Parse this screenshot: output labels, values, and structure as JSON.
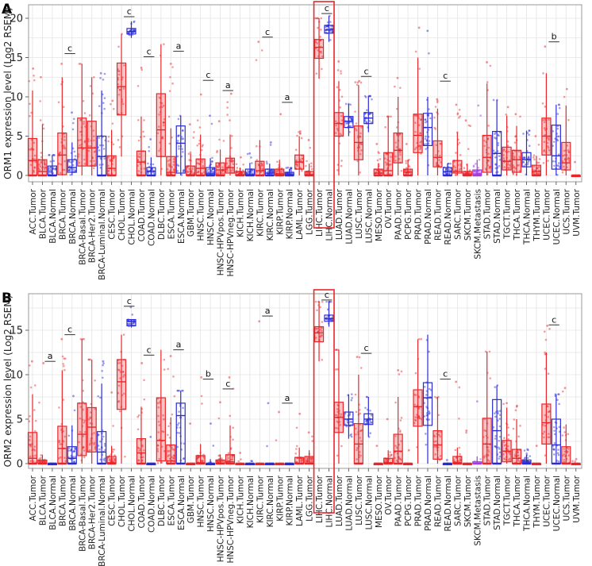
{
  "colors": {
    "tumor": "#e8262b",
    "normal": "#2b2bd6",
    "metastasis": "#a23ee0",
    "highlight": "#e8262b",
    "grid": "#e4e4e4"
  },
  "chart_data": [
    {
      "type": "box",
      "panel": "A",
      "ylabel": "ORM1 expression level (Log2 RSEM)",
      "ylim": [
        0,
        20.8
      ],
      "yticks": [
        0,
        5,
        10,
        15,
        20
      ],
      "grid": true,
      "highlight": [
        "LIHC.Tumor",
        "LIHC.Normal"
      ],
      "stat_format": "[whisker_low, q1, median, q3, whisker_high, max_point]",
      "categories": [
        "ACC.Tumor",
        "BLCA.Tumor",
        "BLCA.Normal",
        "BRCA.Tumor",
        "BRCA.Normal",
        "BRCA-Basal.Tumor",
        "BRCA-Her2.Tumor",
        "BRCA-Luminal.Normal",
        "CESC.Tumor",
        "CHOL.Tumor",
        "CHOL.Normal",
        "COAD.Tumor",
        "COAD.Normal",
        "DLBC.Tumor",
        "ESCA.Tumor",
        "ESCA.Normal",
        "GBM.Tumor",
        "HNSC.Tumor",
        "HNSC.Normal",
        "HNSC-HPVpos.Tumor",
        "HNSC-HPVneg.Tumor",
        "KICH.Tumor",
        "KICH.Normal",
        "KIRC.Tumor",
        "KIRC.Normal",
        "KIRP.Tumor",
        "KIRP.Normal",
        "LAML.Tumor",
        "LGG.Tumor",
        "LIHC.Tumor",
        "LIHC.Normal",
        "LUAD.Tumor",
        "LUAD.Normal",
        "LUSC.Tumor",
        "LUSC.Normal",
        "MESO.Tumor",
        "OV.Tumor",
        "PAAD.Tumor",
        "PCPG.Tumor",
        "PRAD.Tumor",
        "PRAD.Normal",
        "READ.Tumor",
        "READ.Normal",
        "SARC.Tumor",
        "SKCM.Tumor",
        "SKCM.Metastasis",
        "STAD.Tumor",
        "STAD.Normal",
        "TGCT.Tumor",
        "THCA.Tumor",
        "THCA.Normal",
        "THYM.Tumor",
        "UCEC.Tumor",
        "UCEC.Normal",
        "UCS.Tumor",
        "UVM.Tumor"
      ],
      "stats": [
        [
          0,
          0,
          1.9,
          4.7,
          10.8,
          13.6
        ],
        [
          0,
          0,
          0.5,
          2.0,
          6.5,
          12.5
        ],
        [
          0,
          0,
          0,
          1.2,
          2.6,
          2.6
        ],
        [
          0,
          0.1,
          2.6,
          5.4,
          12.5,
          14.2
        ],
        [
          0,
          0.4,
          1.0,
          2.0,
          4.2,
          8
        ],
        [
          0,
          1.2,
          3.5,
          7.3,
          14.2,
          14.2
        ],
        [
          0,
          1.2,
          3.5,
          6.9,
          12.5,
          12.5
        ],
        [
          0,
          0,
          2.4,
          5.0,
          10.8,
          13
        ],
        [
          0,
          0,
          0.9,
          2.5,
          5.8,
          9.5
        ],
        [
          2.4,
          7.7,
          11.3,
          14.3,
          18,
          18
        ],
        [
          17.5,
          18,
          18.3,
          18.7,
          19.6,
          19.6
        ],
        [
          0,
          0,
          1.7,
          3.1,
          7.5,
          13.7
        ],
        [
          0,
          0,
          0.5,
          1.0,
          2.3,
          4.6
        ],
        [
          0,
          2.4,
          5.8,
          10.4,
          16.7,
          16.7
        ],
        [
          0,
          0,
          0.4,
          2.4,
          6,
          14.2
        ],
        [
          0,
          0.3,
          4.1,
          6.3,
          7.6,
          7.6
        ],
        [
          0,
          0,
          0.1,
          1.2,
          2.8,
          6.5
        ],
        [
          0,
          0,
          0.9,
          2.1,
          5.2,
          10.3
        ],
        [
          0,
          0,
          0.2,
          1.0,
          2.2,
          7.6
        ],
        [
          0,
          0,
          0.7,
          1.6,
          3.3,
          6.9
        ],
        [
          0,
          0.3,
          1.0,
          2.2,
          5.2,
          10.4
        ],
        [
          0,
          0,
          0.1,
          0.5,
          1.0,
          2.3
        ],
        [
          0,
          0,
          0.1,
          0.8,
          1.6,
          2.8
        ],
        [
          0,
          0,
          0.6,
          1.8,
          4.5,
          17
        ],
        [
          0,
          0,
          0.3,
          0.8,
          1.5,
          4.2
        ],
        [
          0,
          0,
          0.2,
          0.8,
          2.0,
          7.8
        ],
        [
          0,
          0,
          0.1,
          0.4,
          0.8,
          1.0
        ],
        [
          0,
          0.8,
          1.7,
          2.6,
          5.0,
          5.6
        ],
        [
          0,
          0,
          0.1,
          0.5,
          1.5,
          4.5
        ],
        [
          12.3,
          14.9,
          16.3,
          17.3,
          20,
          20
        ],
        [
          17,
          18.1,
          18.5,
          19.1,
          20.3,
          20.3
        ],
        [
          0,
          5,
          6.6,
          8,
          12,
          14.5
        ],
        [
          5,
          6.1,
          6.9,
          7.5,
          9.1,
          9.1
        ],
        [
          0,
          2,
          4.2,
          6.3,
          11.5,
          12
        ],
        [
          5.5,
          6.6,
          7.3,
          8.0,
          10.1,
          10.1
        ],
        [
          0,
          0,
          0.3,
          0.8,
          1.5,
          4
        ],
        [
          0,
          0,
          0.6,
          2.9,
          7.5,
          7.5
        ],
        [
          0,
          1.6,
          3.2,
          5.4,
          10,
          12.4
        ],
        [
          0,
          0,
          0.4,
          0.8,
          2.0,
          4
        ],
        [
          0,
          2.9,
          5.1,
          7.8,
          15,
          18.8
        ],
        [
          0,
          3.8,
          6.1,
          7.9,
          10,
          18.4
        ],
        [
          0,
          1.1,
          2.3,
          4.4,
          8.5,
          9.7
        ],
        [
          0,
          0,
          0.5,
          1.0,
          1.5,
          1.5
        ],
        [
          0,
          0.3,
          0.5,
          1.9,
          5.5,
          9
        ],
        [
          0,
          0,
          0.2,
          0.5,
          1.5,
          7
        ],
        [
          0,
          0,
          0.2,
          0.7,
          2.0,
          8.9
        ],
        [
          0,
          0.4,
          2.3,
          5.1,
          11.7,
          14.4
        ],
        [
          0,
          0,
          2.8,
          5.6,
          9.6,
          9.6
        ],
        [
          0,
          0.7,
          1.8,
          3.6,
          7.6,
          8.7
        ],
        [
          0,
          0.4,
          2.0,
          3.2,
          6.3,
          7.8
        ],
        [
          0,
          1.1,
          2.0,
          2.9,
          5.7,
          5.7
        ],
        [
          0,
          0,
          0.5,
          1.3,
          2.5,
          5
        ],
        [
          0,
          2.6,
          5.0,
          7.3,
          13,
          16.4
        ],
        [
          0,
          0.8,
          2.5,
          6.4,
          9.0,
          9.0
        ],
        [
          0,
          0.7,
          1.6,
          4.2,
          8.9,
          11
        ],
        [
          0,
          0,
          0,
          0,
          0,
          1.7
        ]
      ],
      "significance": [
        {
          "pair": [
            3,
            4
          ],
          "label": "c",
          "y": 15.5
        },
        {
          "pair": [
            9,
            10
          ],
          "label": "c",
          "y": 20.2
        },
        {
          "pair": [
            11,
            12
          ],
          "label": "c",
          "y": 15.1
        },
        {
          "pair": [
            14,
            15
          ],
          "label": "a",
          "y": 15.8
        },
        {
          "pair": [
            17,
            18
          ],
          "label": "c",
          "y": 12.1
        },
        {
          "pair": [
            19,
            20
          ],
          "label": "a",
          "y": 10.8
        },
        {
          "pair": [
            23,
            24
          ],
          "label": "c",
          "y": 17.6
        },
        {
          "pair": [
            25,
            26
          ],
          "label": "a",
          "y": 9.3
        },
        {
          "pair": [
            29,
            30
          ],
          "label": "c",
          "y": 20.6
        },
        {
          "pair": [
            33,
            34
          ],
          "label": "c",
          "y": 12.6
        },
        {
          "pair": [
            41,
            42
          ],
          "label": "c",
          "y": 12.0
        },
        {
          "pair": [
            52,
            53
          ],
          "label": "b",
          "y": 17.0
        }
      ]
    },
    {
      "type": "box",
      "panel": "B",
      "ylabel": "ORM2 expression level (Log2 RSEM)",
      "ylim": [
        0,
        19.3
      ],
      "yticks": [
        0,
        5,
        10,
        15
      ],
      "grid": true,
      "highlight": [
        "LIHC.Tumor",
        "LIHC.Normal"
      ],
      "stat_format": "[whisker_low, q1, median, q3, whisker_high, max_point]",
      "categories": [
        "ACC.Tumor",
        "BLCA.Tumor",
        "BLCA.Normal",
        "BRCA.Tumor",
        "BRCA.Normal",
        "BRCA-Basal.Tumor",
        "BRCA-Her2.Tumor",
        "BRCA-Luminal.Normal",
        "CESC.Tumor",
        "CHOL.Tumor",
        "CHOL.Normal",
        "COAD.Tumor",
        "COAD.Normal",
        "DLBC.Tumor",
        "ESCA.Tumor",
        "ESCA.Normal",
        "GBM.Tumor",
        "HNSC.Tumor",
        "HNSC.Normal",
        "HNSC-HPVpos.Tumor",
        "HNSC-HPVneg.Tumor",
        "KICH.Tumor",
        "KICH.Normal",
        "KIRC.Tumor",
        "KIRC.Normal",
        "KIRP.Tumor",
        "KIRP.Normal",
        "LAML.Tumor",
        "LGG.Tumor",
        "LIHC.Tumor",
        "LIHC.Normal",
        "LUAD.Tumor",
        "LUAD.Normal",
        "LUSC.Tumor",
        "LUSC.Normal",
        "MESO.Tumor",
        "OV.Tumor",
        "PAAD.Tumor",
        "PCPG.Tumor",
        "PRAD.Tumor",
        "PRAD.Normal",
        "READ.Tumor",
        "READ.Normal",
        "SARC.Tumor",
        "SKCM.Tumor",
        "SKCM.Metastasis",
        "STAD.Tumor",
        "STAD.Normal",
        "TGCT.Tumor",
        "THCA.Tumor",
        "THCA.Normal",
        "THYM.Tumor",
        "UCEC.Tumor",
        "UCEC.Normal",
        "UCS.Tumor",
        "UVM.Tumor"
      ],
      "stats": [
        [
          0,
          0,
          0.6,
          3.5,
          7.8,
          11.5
        ],
        [
          0,
          0,
          0,
          0.4,
          1,
          11.3
        ],
        [
          0,
          0,
          0,
          0,
          0,
          0
        ],
        [
          0,
          0,
          1.7,
          4.2,
          10.5,
          14
        ],
        [
          0,
          0,
          0.6,
          1.9,
          4.3,
          7.6
        ],
        [
          0,
          0.9,
          3.3,
          6.8,
          14,
          14
        ],
        [
          0,
          1.3,
          4.1,
          6.3,
          11.7,
          11.7
        ],
        [
          0,
          0,
          1.3,
          3.6,
          9,
          11.5
        ],
        [
          0,
          0,
          0.1,
          0.8,
          2,
          8
        ],
        [
          0,
          6.1,
          9.2,
          11.7,
          14.5,
          14.5
        ],
        [
          15.3,
          15.5,
          16,
          16.2,
          16.2,
          17.6
        ],
        [
          0,
          0,
          1.2,
          2.8,
          6.4,
          11.3
        ],
        [
          0,
          0,
          0,
          0,
          0,
          3
        ],
        [
          0,
          0.3,
          2.6,
          7.4,
          12.8,
          12.8
        ],
        [
          0,
          0,
          0.3,
          2.1,
          5.2,
          12.1
        ],
        [
          0,
          0,
          5.4,
          6.8,
          8.2,
          8.2
        ],
        [
          0,
          0,
          0,
          0,
          0,
          4.5
        ],
        [
          0,
          0,
          0.1,
          0.9,
          2.2,
          9.7
        ],
        [
          0,
          0,
          0,
          0,
          0.5,
          4.5
        ],
        [
          0,
          0,
          0,
          0.4,
          1,
          6.9
        ],
        [
          0,
          0,
          0.2,
          1.0,
          4.3,
          9.7
        ],
        [
          0,
          0,
          0,
          0,
          0,
          1.2
        ],
        [
          0,
          0,
          0,
          0,
          0,
          0.3
        ],
        [
          0,
          0,
          0,
          0,
          0,
          16
        ],
        [
          0,
          0,
          0,
          0,
          0,
          6.8
        ],
        [
          0,
          0,
          0,
          0,
          0,
          5.8
        ],
        [
          0,
          0,
          0,
          0,
          0,
          0
        ],
        [
          0,
          0,
          0,
          0.7,
          1.8,
          5.6
        ],
        [
          0,
          0,
          0,
          0.8,
          1.5,
          3.5
        ],
        [
          11.5,
          13.7,
          14.7,
          15.4,
          18.2,
          18.2
        ],
        [
          15.4,
          16,
          16.3,
          16.7,
          18.2,
          18.2
        ],
        [
          0,
          3.5,
          5.2,
          6.9,
          12.8,
          12.8
        ],
        [
          2.8,
          4.3,
          5.0,
          5.8,
          7.8,
          7.8
        ],
        [
          0,
          0,
          2.2,
          4.5,
          10,
          12
        ],
        [
          3.0,
          4.4,
          5.0,
          5.6,
          7.5,
          7.5
        ],
        [
          0,
          0,
          0,
          0,
          0,
          2
        ],
        [
          0,
          0,
          0.1,
          0.6,
          1.5,
          5
        ],
        [
          0,
          0,
          1.4,
          3.3,
          7.5,
          10.5
        ],
        [
          0,
          0,
          0,
          0,
          0,
          1.5
        ],
        [
          0,
          4.2,
          6.4,
          8.3,
          14,
          14
        ],
        [
          0,
          4.3,
          7.4,
          9.1,
          14.5,
          14.5
        ],
        [
          0,
          0.5,
          2.1,
          3.7,
          7.5,
          7.5
        ],
        [
          0,
          0,
          0,
          0,
          0,
          0.4
        ],
        [
          0,
          0,
          0.1,
          0.8,
          1.8,
          9.2
        ],
        [
          0,
          0,
          0,
          0,
          0,
          3.7
        ],
        [
          0,
          0,
          0,
          0.2,
          0.8,
          7
        ],
        [
          0,
          0,
          2.2,
          5.1,
          12.6,
          12.6
        ],
        [
          0,
          0,
          3.7,
          7.2,
          8.8,
          8.8
        ],
        [
          0,
          0.2,
          1.4,
          2.6,
          6.3,
          6.8
        ],
        [
          0,
          0,
          0.6,
          1.6,
          5,
          6.5
        ],
        [
          0,
          0,
          0.2,
          0.4,
          1,
          1.6
        ],
        [
          0,
          0,
          0,
          0,
          0,
          2
        ],
        [
          0,
          2.2,
          4.6,
          6.7,
          12.5,
          15.5
        ],
        [
          0,
          0,
          2.1,
          5.0,
          7.8,
          7.8
        ],
        [
          0,
          0,
          0,
          1.9,
          4.4,
          8.5
        ],
        [
          0,
          0,
          0,
          0,
          0,
          0.5
        ]
      ],
      "significance": [
        {
          "pair": [
            1,
            2
          ],
          "label": "a",
          "y": 11.5
        },
        {
          "pair": [
            3,
            4
          ],
          "label": "c",
          "y": 14.5
        },
        {
          "pair": [
            9,
            10
          ],
          "label": "c",
          "y": 17.7
        },
        {
          "pair": [
            11,
            12
          ],
          "label": "c",
          "y": 12.2
        },
        {
          "pair": [
            14,
            15
          ],
          "label": "a",
          "y": 12.8
        },
        {
          "pair": [
            17,
            18
          ],
          "label": "b",
          "y": 9.5
        },
        {
          "pair": [
            19,
            20
          ],
          "label": "c",
          "y": 8.4
        },
        {
          "pair": [
            23,
            24
          ],
          "label": "a",
          "y": 16.6
        },
        {
          "pair": [
            25,
            26
          ],
          "label": "a",
          "y": 6.8
        },
        {
          "pair": [
            29,
            30
          ],
          "label": "c",
          "y": 18.4
        },
        {
          "pair": [
            33,
            34
          ],
          "label": "c",
          "y": 12.4
        },
        {
          "pair": [
            41,
            42
          ],
          "label": "c",
          "y": 9.5
        },
        {
          "pair": [
            52,
            53
          ],
          "label": "c",
          "y": 15.6
        }
      ]
    }
  ]
}
